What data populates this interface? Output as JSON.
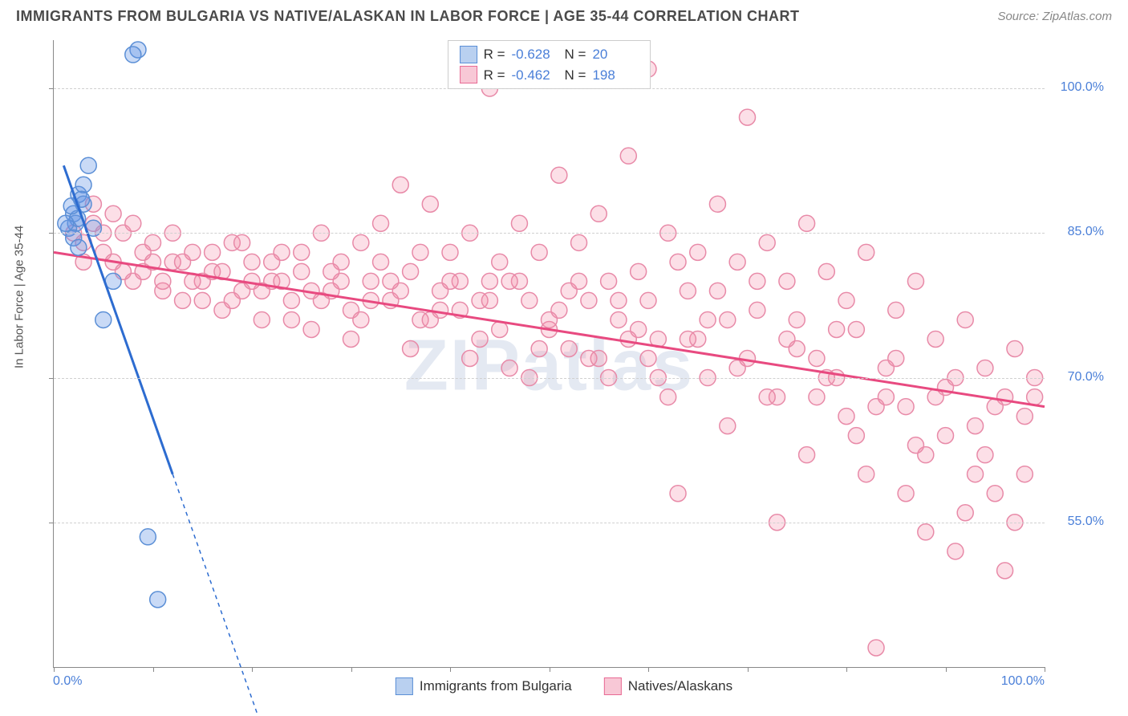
{
  "header": {
    "title": "IMMIGRANTS FROM BULGARIA VS NATIVE/ALASKAN IN LABOR FORCE | AGE 35-44 CORRELATION CHART",
    "source": "Source: ZipAtlas.com"
  },
  "watermark": "ZIPatlas",
  "chart": {
    "type": "scatter",
    "background_color": "#ffffff",
    "grid_color": "#d0d0d0",
    "axis_color": "#888888",
    "tick_label_color": "#4a7fd8",
    "axis_label_color": "#555555",
    "y_axis_label": "In Labor Force | Age 35-44",
    "x_range": [
      0,
      100
    ],
    "y_range": [
      40,
      105
    ],
    "y_ticks": [
      {
        "value": 55,
        "label": "55.0%"
      },
      {
        "value": 70,
        "label": "70.0%"
      },
      {
        "value": 85,
        "label": "85.0%"
      },
      {
        "value": 100,
        "label": "100.0%"
      }
    ],
    "x_label_min": "0.0%",
    "x_label_max": "100.0%",
    "x_minor_tick_step": 10,
    "marker_radius": 10,
    "marker_stroke_width": 1.5,
    "trend_line_width": 3,
    "series": [
      {
        "id": "bulgaria",
        "label": "Immigrants from Bulgaria",
        "color_fill": "rgba(100,150,230,0.35)",
        "color_stroke": "#5b8fd6",
        "swatch_fill": "#b9d0f0",
        "swatch_border": "#5b8fd6",
        "trend_color": "#2d6cd0",
        "r_value": "-0.628",
        "n_value": "20",
        "trend_line": {
          "x1": 1,
          "y1": 92,
          "x2": 12,
          "y2": 60,
          "dash_extend_to_x": 21
        },
        "points": [
          [
            2.0,
            87.0
          ],
          [
            2.2,
            86.0
          ],
          [
            2.4,
            86.5
          ],
          [
            1.5,
            85.5
          ],
          [
            1.8,
            87.8
          ],
          [
            2.5,
            89.0
          ],
          [
            3.0,
            90.0
          ],
          [
            3.5,
            92.0
          ],
          [
            3.0,
            88.0
          ],
          [
            2.0,
            84.5
          ],
          [
            2.5,
            83.5
          ],
          [
            4.0,
            85.5
          ],
          [
            8.5,
            104.0
          ],
          [
            8.0,
            103.5
          ],
          [
            6.0,
            80.0
          ],
          [
            5.0,
            76.0
          ],
          [
            9.5,
            53.5
          ],
          [
            10.5,
            47.0
          ],
          [
            2.8,
            88.5
          ],
          [
            1.2,
            86.0
          ]
        ]
      },
      {
        "id": "natives",
        "label": "Natives/Alaskans",
        "color_fill": "rgba(245,140,170,0.28)",
        "color_stroke": "#e88aa8",
        "swatch_fill": "#f8c8d6",
        "swatch_border": "#e86a94",
        "trend_color": "#e84a80",
        "r_value": "-0.462",
        "n_value": "198",
        "trend_line": {
          "x1": 0,
          "y1": 83,
          "x2": 100,
          "y2": 67
        },
        "points": [
          [
            2,
            85
          ],
          [
            3,
            84
          ],
          [
            4,
            86
          ],
          [
            5,
            83
          ],
          [
            6,
            82
          ],
          [
            7,
            85
          ],
          [
            8,
            80
          ],
          [
            9,
            81
          ],
          [
            10,
            84
          ],
          [
            11,
            79
          ],
          [
            12,
            82
          ],
          [
            13,
            78
          ],
          [
            14,
            83
          ],
          [
            15,
            80
          ],
          [
            16,
            81
          ],
          [
            17,
            77
          ],
          [
            18,
            84
          ],
          [
            19,
            79
          ],
          [
            20,
            82
          ],
          [
            21,
            76
          ],
          [
            22,
            80
          ],
          [
            23,
            83
          ],
          [
            24,
            78
          ],
          [
            25,
            81
          ],
          [
            26,
            75
          ],
          [
            27,
            85
          ],
          [
            28,
            79
          ],
          [
            29,
            82
          ],
          [
            30,
            77
          ],
          [
            31,
            84
          ],
          [
            32,
            80
          ],
          [
            33,
            86
          ],
          [
            34,
            78
          ],
          [
            35,
            90
          ],
          [
            36,
            81
          ],
          [
            37,
            76
          ],
          [
            38,
            88
          ],
          [
            39,
            79
          ],
          [
            40,
            83
          ],
          [
            41,
            77
          ],
          [
            42,
            85
          ],
          [
            43,
            74
          ],
          [
            44,
            80
          ],
          [
            45,
            82
          ],
          [
            46,
            71
          ],
          [
            47,
            86
          ],
          [
            48,
            78
          ],
          [
            49,
            83
          ],
          [
            50,
            75
          ],
          [
            51,
            91
          ],
          [
            52,
            79
          ],
          [
            53,
            84
          ],
          [
            54,
            72
          ],
          [
            55,
            87
          ],
          [
            56,
            80
          ],
          [
            57,
            76
          ],
          [
            58,
            93
          ],
          [
            59,
            81
          ],
          [
            60,
            78
          ],
          [
            61,
            74
          ],
          [
            62,
            85
          ],
          [
            63,
            58
          ],
          [
            64,
            79
          ],
          [
            65,
            83
          ],
          [
            66,
            70
          ],
          [
            67,
            88
          ],
          [
            68,
            76
          ],
          [
            69,
            82
          ],
          [
            70,
            97
          ],
          [
            71,
            77
          ],
          [
            72,
            84
          ],
          [
            73,
            55
          ],
          [
            74,
            80
          ],
          [
            75,
            73
          ],
          [
            76,
            86
          ],
          [
            77,
            68
          ],
          [
            78,
            81
          ],
          [
            79,
            75
          ],
          [
            80,
            78
          ],
          [
            81,
            64
          ],
          [
            82,
            83
          ],
          [
            83,
            42
          ],
          [
            84,
            71
          ],
          [
            85,
            77
          ],
          [
            86,
            67
          ],
          [
            87,
            80
          ],
          [
            88,
            62
          ],
          [
            89,
            74
          ],
          [
            90,
            69
          ],
          [
            91,
            52
          ],
          [
            92,
            76
          ],
          [
            93,
            65
          ],
          [
            94,
            71
          ],
          [
            95,
            58
          ],
          [
            96,
            68
          ],
          [
            97,
            73
          ],
          [
            98,
            66
          ],
          [
            99,
            70
          ],
          [
            3,
            82
          ],
          [
            5,
            85
          ],
          [
            7,
            81
          ],
          [
            9,
            83
          ],
          [
            11,
            80
          ],
          [
            13,
            82
          ],
          [
            15,
            78
          ],
          [
            17,
            81
          ],
          [
            19,
            84
          ],
          [
            21,
            79
          ],
          [
            23,
            80
          ],
          [
            25,
            83
          ],
          [
            27,
            78
          ],
          [
            29,
            80
          ],
          [
            31,
            76
          ],
          [
            33,
            82
          ],
          [
            35,
            79
          ],
          [
            37,
            83
          ],
          [
            39,
            77
          ],
          [
            41,
            80
          ],
          [
            43,
            78
          ],
          [
            45,
            75
          ],
          [
            47,
            80
          ],
          [
            49,
            73
          ],
          [
            51,
            77
          ],
          [
            53,
            80
          ],
          [
            55,
            72
          ],
          [
            57,
            78
          ],
          [
            59,
            75
          ],
          [
            61,
            70
          ],
          [
            63,
            82
          ],
          [
            65,
            74
          ],
          [
            67,
            79
          ],
          [
            69,
            71
          ],
          [
            71,
            80
          ],
          [
            73,
            68
          ],
          [
            75,
            76
          ],
          [
            77,
            72
          ],
          [
            79,
            70
          ],
          [
            81,
            75
          ],
          [
            83,
            67
          ],
          [
            85,
            72
          ],
          [
            87,
            63
          ],
          [
            89,
            68
          ],
          [
            91,
            70
          ],
          [
            93,
            60
          ],
          [
            95,
            67
          ],
          [
            97,
            55
          ],
          [
            99,
            68
          ],
          [
            44,
            100
          ],
          [
            56,
            104
          ],
          [
            60,
            102
          ],
          [
            4,
            88
          ],
          [
            6,
            87
          ],
          [
            8,
            86
          ],
          [
            10,
            82
          ],
          [
            12,
            85
          ],
          [
            14,
            80
          ],
          [
            16,
            83
          ],
          [
            18,
            78
          ],
          [
            20,
            80
          ],
          [
            22,
            82
          ],
          [
            24,
            76
          ],
          [
            26,
            79
          ],
          [
            28,
            81
          ],
          [
            30,
            74
          ],
          [
            32,
            78
          ],
          [
            34,
            80
          ],
          [
            36,
            73
          ],
          [
            38,
            76
          ],
          [
            40,
            80
          ],
          [
            42,
            72
          ],
          [
            44,
            78
          ],
          [
            46,
            80
          ],
          [
            48,
            70
          ],
          [
            50,
            76
          ],
          [
            52,
            73
          ],
          [
            54,
            78
          ],
          [
            56,
            70
          ],
          [
            58,
            74
          ],
          [
            60,
            72
          ],
          [
            62,
            68
          ],
          [
            64,
            74
          ],
          [
            66,
            76
          ],
          [
            68,
            65
          ],
          [
            70,
            72
          ],
          [
            72,
            68
          ],
          [
            74,
            74
          ],
          [
            76,
            62
          ],
          [
            78,
            70
          ],
          [
            80,
            66
          ],
          [
            82,
            60
          ],
          [
            84,
            68
          ],
          [
            86,
            58
          ],
          [
            88,
            54
          ],
          [
            90,
            64
          ],
          [
            92,
            56
          ],
          [
            94,
            62
          ],
          [
            96,
            50
          ],
          [
            98,
            60
          ]
        ]
      }
    ],
    "legend_top": {
      "r_label": "R =",
      "n_label": "N ="
    },
    "legend_bottom_labels": [
      "Immigrants from Bulgaria",
      "Natives/Alaskans"
    ]
  }
}
